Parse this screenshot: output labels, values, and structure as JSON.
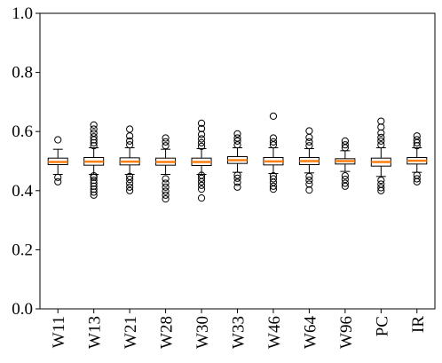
{
  "chart_data": {
    "type": "box",
    "title": "",
    "xlabel": "",
    "ylabel": "",
    "ylim": [
      0.0,
      1.0
    ],
    "yticks": [
      "0.0",
      "0.2",
      "0.4",
      "0.6",
      "0.8",
      "1.0"
    ],
    "grid": false,
    "colors": {
      "median": "#ff7f0e",
      "box": "#000000",
      "flier": "#000000"
    },
    "categories": [
      "W11",
      "W13",
      "W21",
      "W28",
      "W30",
      "W33",
      "W46",
      "W64",
      "W96",
      "PC",
      "IR"
    ],
    "boxes": [
      {
        "q1": 0.488,
        "median": 0.497,
        "q3": 0.51,
        "whisker_low": 0.455,
        "whisker_high": 0.54,
        "fliers": [
          0.43,
          0.445,
          0.572
        ]
      },
      {
        "q1": 0.486,
        "median": 0.498,
        "q3": 0.512,
        "whisker_low": 0.455,
        "whisker_high": 0.545,
        "fliers": [
          0.385,
          0.395,
          0.405,
          0.415,
          0.425,
          0.435,
          0.445,
          0.45,
          0.552,
          0.562,
          0.572,
          0.582,
          0.595,
          0.608,
          0.622
        ]
      },
      {
        "q1": 0.487,
        "median": 0.498,
        "q3": 0.511,
        "whisker_low": 0.455,
        "whisker_high": 0.545,
        "fliers": [
          0.4,
          0.412,
          0.425,
          0.438,
          0.448,
          0.555,
          0.568,
          0.585,
          0.608
        ]
      },
      {
        "q1": 0.486,
        "median": 0.497,
        "q3": 0.51,
        "whisker_low": 0.455,
        "whisker_high": 0.54,
        "fliers": [
          0.372,
          0.385,
          0.398,
          0.412,
          0.425,
          0.44,
          0.552,
          0.565,
          0.578
        ]
      },
      {
        "q1": 0.485,
        "median": 0.497,
        "q3": 0.51,
        "whisker_low": 0.455,
        "whisker_high": 0.542,
        "fliers": [
          0.375,
          0.405,
          0.418,
          0.43,
          0.442,
          0.452,
          0.55,
          0.562,
          0.575,
          0.59,
          0.61,
          0.628
        ]
      },
      {
        "q1": 0.492,
        "median": 0.503,
        "q3": 0.515,
        "whisker_low": 0.462,
        "whisker_high": 0.545,
        "fliers": [
          0.412,
          0.428,
          0.442,
          0.452,
          0.555,
          0.568,
          0.578,
          0.592
        ]
      },
      {
        "q1": 0.487,
        "median": 0.499,
        "q3": 0.512,
        "whisker_low": 0.458,
        "whisker_high": 0.545,
        "fliers": [
          0.405,
          0.415,
          0.428,
          0.44,
          0.45,
          0.555,
          0.565,
          0.578,
          0.652
        ]
      },
      {
        "q1": 0.488,
        "median": 0.5,
        "q3": 0.512,
        "whisker_low": 0.46,
        "whisker_high": 0.542,
        "fliers": [
          0.402,
          0.422,
          0.435,
          0.448,
          0.552,
          0.565,
          0.58,
          0.602
        ]
      },
      {
        "q1": 0.49,
        "median": 0.5,
        "q3": 0.508,
        "whisker_low": 0.465,
        "whisker_high": 0.535,
        "fliers": [
          0.415,
          0.425,
          0.438,
          0.45,
          0.545,
          0.555,
          0.568
        ]
      },
      {
        "q1": 0.483,
        "median": 0.497,
        "q3": 0.51,
        "whisker_low": 0.448,
        "whisker_high": 0.545,
        "fliers": [
          0.4,
          0.41,
          0.422,
          0.435,
          0.555,
          0.568,
          0.58,
          0.595,
          0.615,
          0.635
        ]
      },
      {
        "q1": 0.49,
        "median": 0.501,
        "q3": 0.512,
        "whisker_low": 0.462,
        "whisker_high": 0.545,
        "fliers": [
          0.43,
          0.44,
          0.452,
          0.552,
          0.562,
          0.572,
          0.585
        ]
      }
    ]
  }
}
